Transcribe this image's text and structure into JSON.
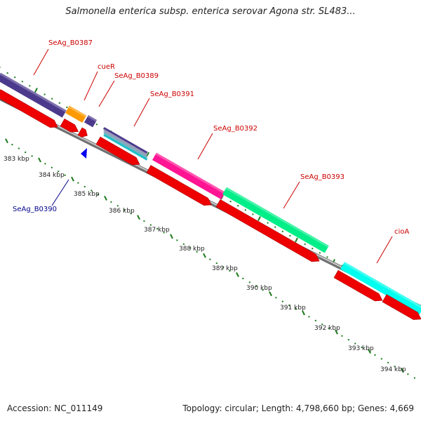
{
  "title": "Salmonella enterica subsp. enterica serovar Agona str. SL483...",
  "accession": "Accession: NC_011149",
  "summary": "Topology: circular; Length: 4,798,660 bp; Genes: 4,669",
  "colors": {
    "red_label": "#cc0000",
    "blue_label": "#00008b",
    "tick_green": "#1a7a1a",
    "backbone": "#909090",
    "cds_red": "#ee0000"
  },
  "ruler": [
    {
      "label": "383 kbp"
    },
    {
      "label": "384 kbp"
    },
    {
      "label": "385 kbp"
    },
    {
      "label": "386 kbp"
    },
    {
      "label": "387 kbp"
    },
    {
      "label": "388 kbp"
    },
    {
      "label": "389 kbp"
    },
    {
      "label": "390 kbp"
    },
    {
      "label": "391 kbp"
    },
    {
      "label": "392 kbp"
    },
    {
      "label": "393 kbp"
    },
    {
      "label": "394 kbp"
    }
  ],
  "genes": [
    {
      "label": "SeAg_B0387",
      "color": "#4b3a8c",
      "strand": "+"
    },
    {
      "label": "cueR",
      "color": "#ff9900",
      "strand": "+"
    },
    {
      "label": "SeAg_B0389",
      "color": "#4b3a8c",
      "strand": "+"
    },
    {
      "label": "SeAg_B0390",
      "color": "#0000ee",
      "strand": "-"
    },
    {
      "label": "SeAg_B0391",
      "color": "#6a6aa8",
      "strand": "+"
    },
    {
      "label": "SeAg_B0392",
      "color": "#ff1493",
      "strand": "+"
    },
    {
      "label": "SeAg_B0393",
      "color": "#00ee88",
      "strand": "+"
    },
    {
      "label": "cioA",
      "color": "#00ffee",
      "strand": "+"
    }
  ]
}
